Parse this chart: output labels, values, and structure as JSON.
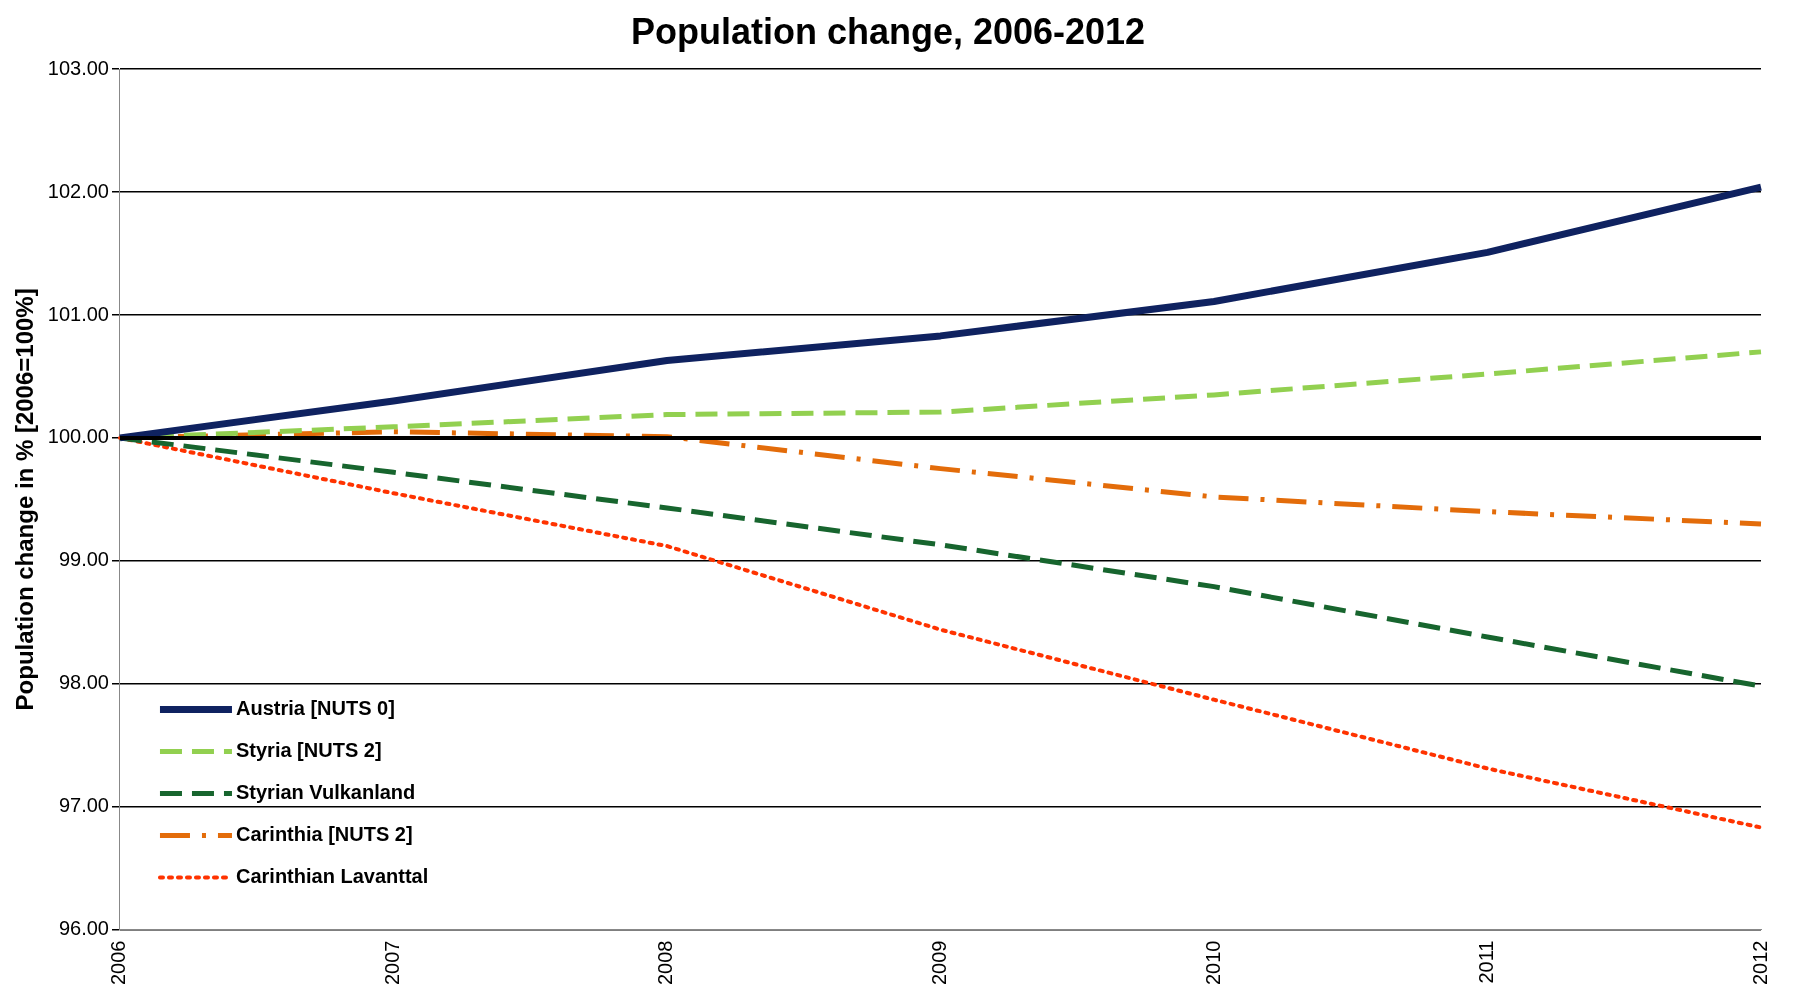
{
  "chart_data": {
    "type": "line",
    "title": "Population change, 2006-2012",
    "ylabel": "Population change in % [2006=100%]",
    "categories": [
      "2006",
      "2007",
      "2008",
      "2009",
      "2010",
      "2011",
      "2012"
    ],
    "series": [
      {
        "name": "Austria [NUTS 0]",
        "color": "#0f2260",
        "line_style": "solid",
        "values": [
          100,
          100.3,
          100.63,
          100.83,
          101.11,
          101.51,
          102.04
        ]
      },
      {
        "name": "Styria [NUTS 2]",
        "color": "#92d050",
        "line_style": "dashed",
        "values": [
          100,
          100.09,
          100.19,
          100.21,
          100.35,
          100.52,
          100.7
        ]
      },
      {
        "name": "Styrian Vulkanland",
        "color": "#17652e",
        "line_style": "dashed",
        "values": [
          100,
          99.72,
          99.43,
          99.13,
          98.79,
          98.38,
          97.98
        ]
      },
      {
        "name": "Carinthia [NUTS 2]",
        "color": "#e36c0a",
        "line_style": "dashdot",
        "values": [
          100,
          100.05,
          100.01,
          99.75,
          99.52,
          99.4,
          99.3
        ]
      },
      {
        "name": "Carinthian Lavanttal",
        "color": "#ff3300",
        "line_style": "dotted",
        "values": [
          100,
          99.55,
          99.12,
          98.44,
          97.87,
          97.31,
          96.83
        ]
      }
    ],
    "ylim": [
      96,
      103
    ],
    "yticks": [
      {
        "value": 96,
        "label": "96.00"
      },
      {
        "value": 97,
        "label": "97.00"
      },
      {
        "value": 98,
        "label": "98.00"
      },
      {
        "value": 99,
        "label": "99.00"
      },
      {
        "value": 100,
        "label": "100.00"
      },
      {
        "value": 101,
        "label": "101.00"
      },
      {
        "value": 102,
        "label": "102.00"
      },
      {
        "value": 103,
        "label": "103.00"
      }
    ],
    "ref_lines": [
      {
        "axis": "y",
        "value": 100,
        "color": "#000000"
      }
    ],
    "grid": "y",
    "legend": "bottom left",
    "marker": "none"
  }
}
